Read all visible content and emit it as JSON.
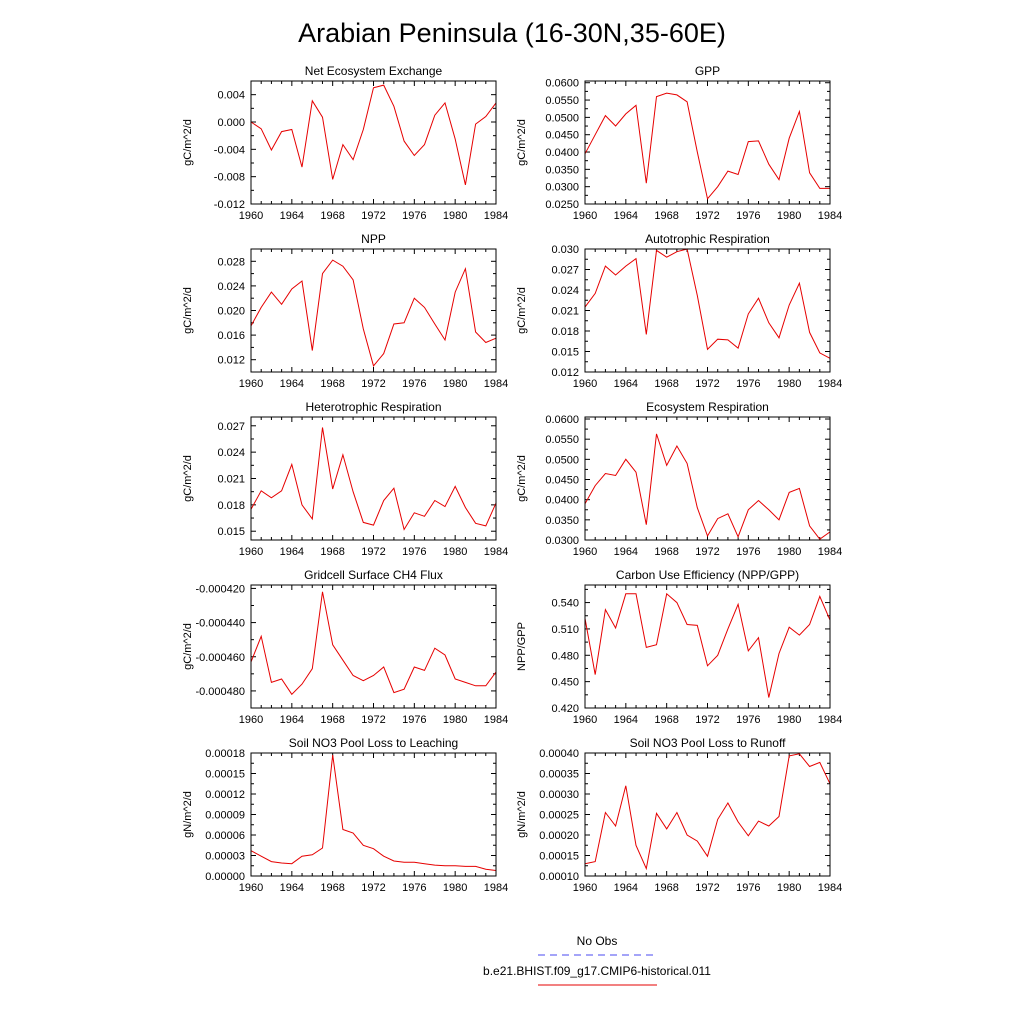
{
  "title": "Arabian Peninsula (16-30N,35-60E)",
  "legend": [
    {
      "label": "No Obs",
      "color": "#4a4af0",
      "dash": true
    },
    {
      "label": "b.e21.BHIST.f09_g17.CMIP6-historical.011",
      "color": "#e60000",
      "dash": false
    }
  ],
  "chart_data": [
    {
      "type": "line",
      "title": "Net Ecosystem Exchange",
      "ylabel": "gC/m^2/d",
      "xlim": [
        1960,
        1984
      ],
      "ylim": [
        -0.012,
        0.006
      ],
      "xticks": [
        1960,
        1964,
        1968,
        1972,
        1976,
        1980,
        1984
      ],
      "yticks": [
        -0.012,
        -0.008,
        -0.004,
        0.0,
        0.004
      ],
      "ytick_labels": [
        "-0.012",
        "-0.008",
        "-0.004",
        "0.000",
        "0.004"
      ],
      "series": [
        {
          "color": "#e60000",
          "x": [
            1960,
            1961,
            1962,
            1963,
            1964,
            1965,
            1966,
            1967,
            1968,
            1969,
            1970,
            1971,
            1972,
            1973,
            1974,
            1975,
            1976,
            1977,
            1978,
            1979,
            1980,
            1981,
            1982,
            1983,
            1984
          ],
          "values": [
            0.0,
            -0.001,
            -0.0041,
            -0.0014,
            -0.0011,
            -0.0066,
            0.0031,
            0.0007,
            -0.0084,
            -0.0033,
            -0.0055,
            -0.0011,
            0.005,
            0.0054,
            0.0023,
            -0.0028,
            -0.0049,
            -0.0033,
            0.001,
            0.0028,
            -0.0025,
            -0.0092,
            -0.0003,
            0.0008,
            0.0028
          ]
        }
      ]
    },
    {
      "type": "line",
      "title": "GPP",
      "ylabel": "gC/m^2/d",
      "xlim": [
        1960,
        1984
      ],
      "ylim": [
        0.025,
        0.0605
      ],
      "xticks": [
        1960,
        1964,
        1968,
        1972,
        1976,
        1980,
        1984
      ],
      "yticks": [
        0.025,
        0.03,
        0.035,
        0.04,
        0.045,
        0.05,
        0.055,
        0.06
      ],
      "ytick_labels": [
        "0.0250",
        "0.0300",
        "0.0350",
        "0.0400",
        "0.0450",
        "0.0500",
        "0.0550",
        "0.0600"
      ],
      "series": [
        {
          "color": "#e60000",
          "x": [
            1960,
            1961,
            1962,
            1963,
            1964,
            1965,
            1966,
            1967,
            1968,
            1969,
            1970,
            1971,
            1972,
            1973,
            1974,
            1975,
            1976,
            1977,
            1978,
            1979,
            1980,
            1981,
            1982,
            1983,
            1984
          ],
          "values": [
            0.0395,
            0.045,
            0.0505,
            0.0475,
            0.051,
            0.0535,
            0.031,
            0.056,
            0.057,
            0.0565,
            0.0545,
            0.04,
            0.0265,
            0.03,
            0.0345,
            0.0335,
            0.043,
            0.0432,
            0.0365,
            0.032,
            0.044,
            0.0517,
            0.034,
            0.0295,
            0.0295
          ]
        }
      ]
    },
    {
      "type": "line",
      "title": "NPP",
      "ylabel": "gC/m^2/d",
      "xlim": [
        1960,
        1984
      ],
      "ylim": [
        0.01,
        0.03
      ],
      "xticks": [
        1960,
        1964,
        1968,
        1972,
        1976,
        1980,
        1984
      ],
      "yticks": [
        0.012,
        0.016,
        0.02,
        0.024,
        0.028
      ],
      "ytick_labels": [
        "0.012",
        "0.016",
        "0.020",
        "0.024",
        "0.028"
      ],
      "series": [
        {
          "color": "#e60000",
          "x": [
            1960,
            1961,
            1962,
            1963,
            1964,
            1965,
            1966,
            1967,
            1968,
            1969,
            1970,
            1971,
            1972,
            1973,
            1974,
            1975,
            1976,
            1977,
            1978,
            1979,
            1980,
            1981,
            1982,
            1983,
            1984
          ],
          "values": [
            0.0175,
            0.0205,
            0.023,
            0.021,
            0.0235,
            0.0248,
            0.0135,
            0.026,
            0.0282,
            0.0272,
            0.025,
            0.017,
            0.011,
            0.013,
            0.0178,
            0.018,
            0.022,
            0.0205,
            0.0178,
            0.0152,
            0.023,
            0.0268,
            0.0165,
            0.0148,
            0.0155
          ]
        }
      ]
    },
    {
      "type": "line",
      "title": "Autotrophic Respiration",
      "ylabel": "gC/m^2/d",
      "xlim": [
        1960,
        1984
      ],
      "ylim": [
        0.012,
        0.03
      ],
      "xticks": [
        1960,
        1964,
        1968,
        1972,
        1976,
        1980,
        1984
      ],
      "yticks": [
        0.012,
        0.015,
        0.018,
        0.021,
        0.024,
        0.027,
        0.03
      ],
      "ytick_labels": [
        "0.012",
        "0.015",
        "0.018",
        "0.021",
        "0.024",
        "0.027",
        "0.030"
      ],
      "series": [
        {
          "color": "#e60000",
          "x": [
            1960,
            1961,
            1962,
            1963,
            1964,
            1965,
            1966,
            1967,
            1968,
            1969,
            1970,
            1971,
            1972,
            1973,
            1974,
            1975,
            1976,
            1977,
            1978,
            1979,
            1980,
            1981,
            1982,
            1983,
            1984
          ],
          "values": [
            0.0215,
            0.0235,
            0.0275,
            0.0262,
            0.0275,
            0.0286,
            0.0175,
            0.0298,
            0.0288,
            0.0296,
            0.03,
            0.0232,
            0.0153,
            0.0168,
            0.0167,
            0.0155,
            0.0205,
            0.0228,
            0.0192,
            0.017,
            0.0218,
            0.025,
            0.0178,
            0.0148,
            0.014
          ]
        }
      ]
    },
    {
      "type": "line",
      "title": "Heterotrophic Respiration",
      "ylabel": "gC/m^2/d",
      "xlim": [
        1960,
        1984
      ],
      "ylim": [
        0.014,
        0.028
      ],
      "xticks": [
        1960,
        1964,
        1968,
        1972,
        1976,
        1980,
        1984
      ],
      "yticks": [
        0.015,
        0.018,
        0.021,
        0.024,
        0.027
      ],
      "ytick_labels": [
        "0.015",
        "0.018",
        "0.021",
        "0.024",
        "0.027"
      ],
      "series": [
        {
          "color": "#e60000",
          "x": [
            1960,
            1961,
            1962,
            1963,
            1964,
            1965,
            1966,
            1967,
            1968,
            1969,
            1970,
            1971,
            1972,
            1973,
            1974,
            1975,
            1976,
            1977,
            1978,
            1979,
            1980,
            1981,
            1982,
            1983,
            1984
          ],
          "values": [
            0.0175,
            0.0196,
            0.0188,
            0.0196,
            0.0226,
            0.018,
            0.0164,
            0.0268,
            0.0198,
            0.0237,
            0.0195,
            0.016,
            0.0157,
            0.0185,
            0.0199,
            0.0152,
            0.0171,
            0.0167,
            0.0185,
            0.0178,
            0.0201,
            0.0177,
            0.0159,
            0.0156,
            0.0182
          ]
        }
      ]
    },
    {
      "type": "line",
      "title": "Ecosystem Respiration",
      "ylabel": "gC/m^2/d",
      "xlim": [
        1960,
        1984
      ],
      "ylim": [
        0.03,
        0.0605
      ],
      "xticks": [
        1960,
        1964,
        1968,
        1972,
        1976,
        1980,
        1984
      ],
      "yticks": [
        0.03,
        0.035,
        0.04,
        0.045,
        0.05,
        0.055,
        0.06
      ],
      "ytick_labels": [
        "0.0300",
        "0.0350",
        "0.0400",
        "0.0450",
        "0.0500",
        "0.0550",
        "0.0600"
      ],
      "series": [
        {
          "color": "#e60000",
          "x": [
            1960,
            1961,
            1962,
            1963,
            1964,
            1965,
            1966,
            1967,
            1968,
            1969,
            1970,
            1971,
            1972,
            1973,
            1974,
            1975,
            1976,
            1977,
            1978,
            1979,
            1980,
            1981,
            1982,
            1983,
            1984
          ],
          "values": [
            0.039,
            0.0435,
            0.0465,
            0.046,
            0.05,
            0.0468,
            0.0338,
            0.0563,
            0.0485,
            0.0533,
            0.049,
            0.038,
            0.031,
            0.0353,
            0.0365,
            0.0308,
            0.0375,
            0.0398,
            0.0375,
            0.035,
            0.0418,
            0.0428,
            0.0335,
            0.0302,
            0.032
          ]
        }
      ]
    },
    {
      "type": "line",
      "title": "Gridcell Surface CH4 Flux",
      "ylabel": "gC/m^2/d",
      "xlim": [
        1960,
        1984
      ],
      "ylim": [
        -0.00049,
        -0.000418
      ],
      "xticks": [
        1960,
        1964,
        1968,
        1972,
        1976,
        1980,
        1984
      ],
      "yticks": [
        -0.00048,
        -0.00046,
        -0.00044,
        -0.00042
      ],
      "ytick_labels": [
        "-0.000480",
        "-0.000460",
        "-0.000440",
        "-0.000420"
      ],
      "series": [
        {
          "color": "#e60000",
          "x": [
            1960,
            1961,
            1962,
            1963,
            1964,
            1965,
            1966,
            1967,
            1968,
            1969,
            1970,
            1971,
            1972,
            1973,
            1974,
            1975,
            1976,
            1977,
            1978,
            1979,
            1980,
            1981,
            1982,
            1983,
            1984
          ],
          "values": [
            -0.000463,
            -0.000448,
            -0.000475,
            -0.000473,
            -0.000482,
            -0.000476,
            -0.000467,
            -0.000422,
            -0.000453,
            -0.000462,
            -0.000471,
            -0.000474,
            -0.000471,
            -0.000466,
            -0.000481,
            -0.000479,
            -0.000466,
            -0.000468,
            -0.000455,
            -0.000459,
            -0.000473,
            -0.000475,
            -0.000477,
            -0.000477,
            -0.000469
          ]
        }
      ]
    },
    {
      "type": "line",
      "title": "Carbon Use Efficiency (NPP/GPP)",
      "ylabel": "NPP/GPP",
      "xlim": [
        1960,
        1984
      ],
      "ylim": [
        0.42,
        0.56
      ],
      "xticks": [
        1960,
        1964,
        1968,
        1972,
        1976,
        1980,
        1984
      ],
      "yticks": [
        0.42,
        0.45,
        0.48,
        0.51,
        0.54
      ],
      "ytick_labels": [
        "0.420",
        "0.450",
        "0.480",
        "0.510",
        "0.540"
      ],
      "series": [
        {
          "color": "#e60000",
          "x": [
            1960,
            1961,
            1962,
            1963,
            1964,
            1965,
            1966,
            1967,
            1968,
            1969,
            1970,
            1971,
            1972,
            1973,
            1974,
            1975,
            1976,
            1977,
            1978,
            1979,
            1980,
            1981,
            1982,
            1983,
            1984
          ],
          "values": [
            0.522,
            0.458,
            0.532,
            0.511,
            0.55,
            0.55,
            0.489,
            0.492,
            0.55,
            0.54,
            0.515,
            0.514,
            0.468,
            0.48,
            0.51,
            0.538,
            0.485,
            0.5,
            0.432,
            0.482,
            0.512,
            0.503,
            0.515,
            0.547,
            0.52
          ]
        }
      ]
    },
    {
      "type": "line",
      "title": "Soil NO3 Pool Loss to Leaching",
      "ylabel": "gN/m^2/d",
      "xlim": [
        1960,
        1984
      ],
      "ylim": [
        0.0,
        0.00018
      ],
      "xticks": [
        1960,
        1964,
        1968,
        1972,
        1976,
        1980,
        1984
      ],
      "yticks": [
        0.0,
        3e-05,
        6e-05,
        9e-05,
        0.00012,
        0.00015,
        0.00018
      ],
      "ytick_labels": [
        "0.00000",
        "0.00003",
        "0.00006",
        "0.00009",
        "0.00012",
        "0.00015",
        "0.00018"
      ],
      "series": [
        {
          "color": "#e60000",
          "x": [
            1960,
            1961,
            1962,
            1963,
            1964,
            1965,
            1966,
            1967,
            1968,
            1969,
            1970,
            1971,
            1972,
            1973,
            1974,
            1975,
            1976,
            1977,
            1978,
            1979,
            1980,
            1981,
            1982,
            1983,
            1984
          ],
          "values": [
            3.7e-05,
            2.9e-05,
            2.1e-05,
            1.9e-05,
            1.8e-05,
            2.9e-05,
            3.1e-05,
            4.1e-05,
            0.000177,
            6.8e-05,
            6.3e-05,
            4.5e-05,
            4e-05,
            2.9e-05,
            2.2e-05,
            2e-05,
            2e-05,
            1.8e-05,
            1.6e-05,
            1.5e-05,
            1.5e-05,
            1.4e-05,
            1.4e-05,
            1e-05,
            8e-06
          ]
        }
      ]
    },
    {
      "type": "line",
      "title": "Soil NO3 Pool Loss to Runoff",
      "ylabel": "gN/m^2/d",
      "xlim": [
        1960,
        1984
      ],
      "ylim": [
        0.0001,
        0.0004
      ],
      "xticks": [
        1960,
        1964,
        1968,
        1972,
        1976,
        1980,
        1984
      ],
      "yticks": [
        0.0001,
        0.00015,
        0.0002,
        0.00025,
        0.0003,
        0.00035,
        0.0004
      ],
      "ytick_labels": [
        "0.00010",
        "0.00015",
        "0.00020",
        "0.00025",
        "0.00030",
        "0.00035",
        "0.00040"
      ],
      "series": [
        {
          "color": "#e60000",
          "x": [
            1960,
            1961,
            1962,
            1963,
            1964,
            1965,
            1966,
            1967,
            1968,
            1969,
            1970,
            1971,
            1972,
            1973,
            1974,
            1975,
            1976,
            1977,
            1978,
            1979,
            1980,
            1981,
            1982,
            1983,
            1984
          ],
          "values": [
            0.00013,
            0.000135,
            0.000255,
            0.000222,
            0.00032,
            0.000175,
            0.000118,
            0.000253,
            0.000215,
            0.000255,
            0.0002,
            0.000185,
            0.000148,
            0.000238,
            0.000278,
            0.000232,
            0.000198,
            0.000234,
            0.000222,
            0.000245,
            0.000393,
            0.000398,
            0.000367,
            0.000377,
            0.000325
          ]
        }
      ]
    }
  ]
}
